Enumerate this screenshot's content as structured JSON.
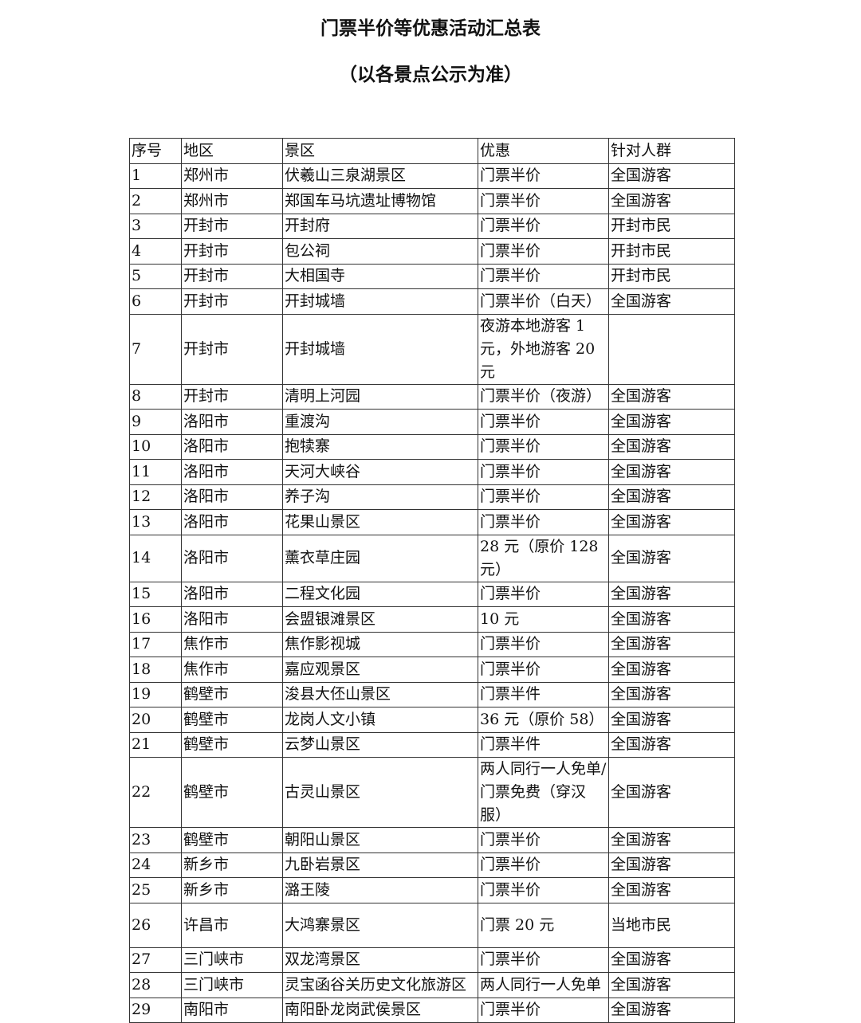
{
  "title": "门票半价等优惠活动汇总表",
  "subtitle": "（以各景点公示为准）",
  "table": {
    "headers": [
      "序号",
      "地区",
      "景区",
      "优惠",
      "针对人群"
    ],
    "rows": [
      [
        "1",
        "郑州市",
        "伏羲山三泉湖景区",
        "门票半价",
        "全国游客"
      ],
      [
        "2",
        "郑州市",
        "郑国车马坑遗址博物馆",
        "门票半价",
        "全国游客"
      ],
      [
        "3",
        "开封市",
        "开封府",
        "门票半价",
        "开封市民"
      ],
      [
        "4",
        "开封市",
        "包公祠",
        "门票半价",
        "开封市民"
      ],
      [
        "5",
        "开封市",
        "大相国寺",
        "门票半价",
        "开封市民"
      ],
      [
        "6",
        "开封市",
        "开封城墙",
        "门票半价（白天）",
        "全国游客"
      ],
      [
        "7",
        "开封市",
        "开封城墙",
        "夜游本地游客 1 元，外地游客 20 元",
        ""
      ],
      [
        "8",
        "开封市",
        "清明上河园",
        "门票半价（夜游）",
        "全国游客"
      ],
      [
        "9",
        "洛阳市",
        "重渡沟",
        "门票半价",
        "全国游客"
      ],
      [
        "10",
        "洛阳市",
        "抱犊寨",
        "门票半价",
        "全国游客"
      ],
      [
        "11",
        "洛阳市",
        "天河大峡谷",
        "门票半价",
        "全国游客"
      ],
      [
        "12",
        "洛阳市",
        "养子沟",
        "门票半价",
        "全国游客"
      ],
      [
        "13",
        "洛阳市",
        "花果山景区",
        "门票半价",
        "全国游客"
      ],
      [
        "14",
        "洛阳市",
        "薰衣草庄园",
        "28 元（原价 128 元）",
        "全国游客"
      ],
      [
        "15",
        "洛阳市",
        "二程文化园",
        "门票半价",
        "全国游客"
      ],
      [
        "16",
        "洛阳市",
        "会盟银滩景区",
        "10 元",
        "全国游客"
      ],
      [
        "17",
        "焦作市",
        "焦作影视城",
        "门票半价",
        "全国游客"
      ],
      [
        "18",
        "焦作市",
        "嘉应观景区",
        "门票半价",
        "全国游客"
      ],
      [
        "19",
        "鹤壁市",
        "浚县大伾山景区",
        "门票半件",
        "全国游客"
      ],
      [
        "20",
        "鹤壁市",
        "龙岗人文小镇",
        "36 元（原价 58）",
        "全国游客"
      ],
      [
        "21",
        "鹤壁市",
        "云梦山景区",
        "门票半件",
        "全国游客"
      ],
      [
        "22",
        "鹤壁市",
        "古灵山景区",
        "两人同行一人免单/门票免费（穿汉服）",
        "全国游客"
      ],
      [
        "23",
        "鹤壁市",
        "朝阳山景区",
        "门票半价",
        "全国游客"
      ],
      [
        "24",
        "新乡市",
        "九卧岩景区",
        "门票半价",
        "全国游客"
      ],
      [
        "25",
        "新乡市",
        "潞王陵",
        "门票半价",
        "全国游客"
      ],
      [
        "26",
        "许昌市",
        "大鸿寨景区",
        "门票 20 元",
        "当地市民"
      ],
      [
        "27",
        "三门峡市",
        "双龙湾景区",
        "门票半价",
        "全国游客"
      ],
      [
        "28",
        "三门峡市",
        "灵宝函谷关历史文化旅游区",
        "两人同行一人免单",
        "全国游客"
      ],
      [
        "29",
        "南阳市",
        "南阳卧龙岗武侯景区",
        "门票半价",
        "全国游客"
      ]
    ]
  }
}
